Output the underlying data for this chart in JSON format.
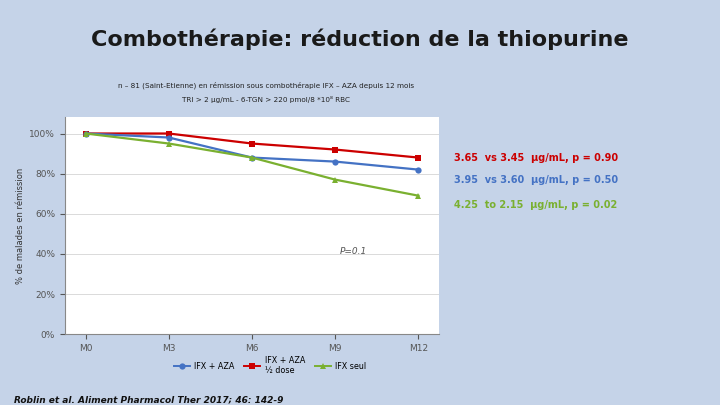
{
  "title": "Combothérapie: réduction de la thiopurine",
  "title_fontsize": 16,
  "title_color": "#1a1a1a",
  "bg_slide": "#c5d3e8",
  "bg_chart": "#ffffff",
  "bg_chart_area": "#f5f5f5",
  "note_box_text1": "n – 81 (Saint-Etienne) en rémission sous combothérapie IFX – AZA depuis 12 mois",
  "note_box_text2": "TRI > 2 μg/mL - 6-TGN > 220 pmol/8 *10⁸ RBC",
  "note_box_color": "#ffffc0",
  "xlabel_ticks": [
    "M0",
    "M3",
    "M6",
    "M9",
    "M12"
  ],
  "ylabel": "% de malades en rémission",
  "ytick_labels": [
    "0%",
    "20%",
    "40%",
    "60%",
    "80%",
    "100%"
  ],
  "yticks": [
    0,
    20,
    40,
    60,
    80,
    100
  ],
  "series": [
    {
      "name": "IFX + AZA ½ dose",
      "color": "#cc0000",
      "marker": "s",
      "values": [
        100,
        100,
        95,
        92,
        88
      ]
    },
    {
      "name": "IFX + AZA",
      "color": "#4472c4",
      "marker": "o",
      "values": [
        100,
        98,
        88,
        86,
        82
      ]
    },
    {
      "name": "IFX seul",
      "color": "#7ab030",
      "marker": "^",
      "values": [
        100,
        95,
        88,
        77,
        69
      ]
    }
  ],
  "annotations": [
    {
      "text": "3.65  vs 3.45  μg/mL, p = 0.90",
      "color": "#cc0000"
    },
    {
      "text": "3.95  vs 3.60  μg/mL, p = 0.50",
      "color": "#4472c4"
    },
    {
      "text": "4.25  to 2.15  μg/mL, p = 0.02",
      "color": "#7ab030"
    }
  ],
  "p_annotation": "P=0.1",
  "footer": "Roblin et al. Aliment Pharmacol Ther 2017; 46: 142-9",
  "legend_entries": [
    {
      "label": "IFX + AZA",
      "color": "#4472c4",
      "marker": "o"
    },
    {
      "label": "IFX + AZA\n½ dose",
      "color": "#cc0000",
      "marker": "s"
    },
    {
      "label": "IFX seul",
      "color": "#7ab030",
      "marker": "^"
    }
  ]
}
